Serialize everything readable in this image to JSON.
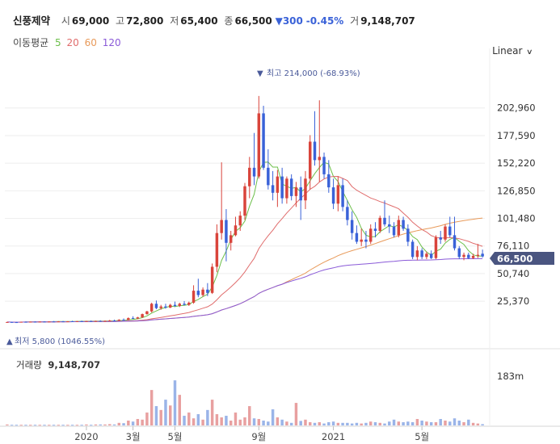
{
  "header": {
    "name": "신풍제약",
    "open_label": "시",
    "open": "69,000",
    "high_label": "고",
    "high": "72,800",
    "low_label": "저",
    "low": "65,400",
    "close_label": "종",
    "close": "66,500",
    "change_arrow": "▼",
    "change": "300",
    "change_pct": "-0.45%",
    "volume_label": "거",
    "volume": "9,148,707"
  },
  "ma_legend": {
    "title": "이동평균",
    "periods": [
      {
        "label": "5",
        "color": "#6cbf4a"
      },
      {
        "label": "20",
        "color": "#e06c6c"
      },
      {
        "label": "60",
        "color": "#e89a5a"
      },
      {
        "label": "120",
        "color": "#8a5ad8"
      }
    ]
  },
  "scale_button": "Linear",
  "volume_panel": {
    "title": "거래량",
    "value": "9,148,707",
    "axis_label": "183m"
  },
  "annotations": {
    "high": "최고 214,000 (-68.93%)",
    "high_arrow": "▼",
    "low": "최저 5,800 (1046.55%)",
    "low_arrow": "▲"
  },
  "colors": {
    "up": "#d9443b",
    "down": "#3a62d8",
    "up_vol": "#e8a0a0",
    "down_vol": "#9ab4e8",
    "badge": "#4a5580"
  },
  "chart_data": {
    "type": "candlestick",
    "title": "신풍제약",
    "current_price": "66,500",
    "y_ticks": [
      "25,370",
      "50,740",
      "76,110",
      "101,480",
      "126,850",
      "152,220",
      "177,590",
      "202,960"
    ],
    "y_tick_values": [
      25370,
      50740,
      76110,
      101480,
      126850,
      152220,
      177590,
      202960
    ],
    "ylim": [
      -3500,
      228000
    ],
    "x_ticks": [
      "2020",
      "3월",
      "5월",
      "9월",
      "2021",
      "5월"
    ],
    "x_tick_index": [
      17,
      27,
      36,
      54,
      70,
      89
    ],
    "volume_ylim": [
      0,
      183000000
    ],
    "volume_tick": "183m",
    "candles": [
      {
        "o": 6000,
        "h": 6400,
        "l": 5800,
        "c": 6200
      },
      {
        "o": 6200,
        "h": 6500,
        "l": 6000,
        "c": 6100
      },
      {
        "o": 6100,
        "h": 6300,
        "l": 5900,
        "c": 6000
      },
      {
        "o": 6000,
        "h": 6600,
        "l": 5900,
        "c": 6400
      },
      {
        "o": 6400,
        "h": 6800,
        "l": 6200,
        "c": 6300
      },
      {
        "o": 6300,
        "h": 6600,
        "l": 6100,
        "c": 6500
      },
      {
        "o": 6500,
        "h": 6900,
        "l": 6300,
        "c": 6400
      },
      {
        "o": 6400,
        "h": 6700,
        "l": 6200,
        "c": 6600
      },
      {
        "o": 6600,
        "h": 7000,
        "l": 6400,
        "c": 6500
      },
      {
        "o": 6500,
        "h": 6800,
        "l": 6300,
        "c": 6700
      },
      {
        "o": 6700,
        "h": 7100,
        "l": 6500,
        "c": 6600
      },
      {
        "o": 6600,
        "h": 7000,
        "l": 6400,
        "c": 6800
      },
      {
        "o": 6800,
        "h": 7200,
        "l": 6600,
        "c": 6700
      },
      {
        "o": 6700,
        "h": 7000,
        "l": 6500,
        "c": 6900
      },
      {
        "o": 6900,
        "h": 7400,
        "l": 6700,
        "c": 6800
      },
      {
        "o": 6800,
        "h": 7200,
        "l": 6600,
        "c": 7000
      },
      {
        "o": 7000,
        "h": 7500,
        "l": 6800,
        "c": 6900
      },
      {
        "o": 6900,
        "h": 7300,
        "l": 6700,
        "c": 7100
      },
      {
        "o": 7100,
        "h": 7600,
        "l": 6900,
        "c": 7000
      },
      {
        "o": 7000,
        "h": 7400,
        "l": 6800,
        "c": 7200
      },
      {
        "o": 7200,
        "h": 7800,
        "l": 7000,
        "c": 7100
      },
      {
        "o": 7100,
        "h": 7600,
        "l": 6900,
        "c": 7300
      },
      {
        "o": 7300,
        "h": 8200,
        "l": 7100,
        "c": 7600
      },
      {
        "o": 7600,
        "h": 8400,
        "l": 7300,
        "c": 7400
      },
      {
        "o": 7400,
        "h": 8800,
        "l": 7200,
        "c": 8300
      },
      {
        "o": 8300,
        "h": 9500,
        "l": 7900,
        "c": 8000
      },
      {
        "o": 8000,
        "h": 10500,
        "l": 7800,
        "c": 9800
      },
      {
        "o": 9800,
        "h": 11500,
        "l": 9200,
        "c": 9400
      },
      {
        "o": 9400,
        "h": 11000,
        "l": 9000,
        "c": 10500
      },
      {
        "o": 10500,
        "h": 14000,
        "l": 10000,
        "c": 13500
      },
      {
        "o": 13500,
        "h": 16500,
        "l": 13000,
        "c": 16000
      },
      {
        "o": 16000,
        "h": 24000,
        "l": 15000,
        "c": 23000
      },
      {
        "o": 23000,
        "h": 26000,
        "l": 18000,
        "c": 19000
      },
      {
        "o": 19000,
        "h": 22000,
        "l": 17500,
        "c": 20500
      },
      {
        "o": 20500,
        "h": 23000,
        "l": 18500,
        "c": 19500
      },
      {
        "o": 19500,
        "h": 23000,
        "l": 19000,
        "c": 22000
      },
      {
        "o": 22000,
        "h": 25000,
        "l": 20000,
        "c": 21000
      },
      {
        "o": 21000,
        "h": 24000,
        "l": 20000,
        "c": 23000
      },
      {
        "o": 23000,
        "h": 25500,
        "l": 21500,
        "c": 22000
      },
      {
        "o": 22000,
        "h": 25000,
        "l": 21000,
        "c": 24000
      },
      {
        "o": 24000,
        "h": 40000,
        "l": 23000,
        "c": 35000
      },
      {
        "o": 35000,
        "h": 46000,
        "l": 29000,
        "c": 31000
      },
      {
        "o": 31000,
        "h": 38000,
        "l": 29500,
        "c": 36000
      },
      {
        "o": 36000,
        "h": 42000,
        "l": 30000,
        "c": 33000
      },
      {
        "o": 33000,
        "h": 60000,
        "l": 32000,
        "c": 57000
      },
      {
        "o": 57000,
        "h": 96000,
        "l": 52000,
        "c": 88000
      },
      {
        "o": 88000,
        "h": 153000,
        "l": 82000,
        "c": 100000
      },
      {
        "o": 100000,
        "h": 110000,
        "l": 62000,
        "c": 79000
      },
      {
        "o": 79000,
        "h": 90000,
        "l": 72000,
        "c": 86000
      },
      {
        "o": 86000,
        "h": 103000,
        "l": 85000,
        "c": 95000
      },
      {
        "o": 95000,
        "h": 108000,
        "l": 90000,
        "c": 104000
      },
      {
        "o": 104000,
        "h": 134000,
        "l": 100000,
        "c": 131000
      },
      {
        "o": 131000,
        "h": 158000,
        "l": 120000,
        "c": 148000
      },
      {
        "o": 148000,
        "h": 180000,
        "l": 132000,
        "c": 140000
      },
      {
        "o": 140000,
        "h": 214000,
        "l": 138000,
        "c": 198000
      },
      {
        "o": 198000,
        "h": 205000,
        "l": 146000,
        "c": 148000
      },
      {
        "o": 148000,
        "h": 165000,
        "l": 128000,
        "c": 132000
      },
      {
        "o": 132000,
        "h": 145000,
        "l": 118000,
        "c": 125000
      },
      {
        "o": 125000,
        "h": 146000,
        "l": 112000,
        "c": 140000
      },
      {
        "o": 140000,
        "h": 148000,
        "l": 115000,
        "c": 120000
      },
      {
        "o": 120000,
        "h": 140000,
        "l": 115000,
        "c": 138000
      },
      {
        "o": 138000,
        "h": 142000,
        "l": 118000,
        "c": 122000
      },
      {
        "o": 122000,
        "h": 135000,
        "l": 112000,
        "c": 130000
      },
      {
        "o": 130000,
        "h": 140000,
        "l": 100000,
        "c": 118000
      },
      {
        "o": 118000,
        "h": 145000,
        "l": 110000,
        "c": 138000
      },
      {
        "o": 138000,
        "h": 178000,
        "l": 128000,
        "c": 172000
      },
      {
        "o": 172000,
        "h": 200000,
        "l": 150000,
        "c": 155000
      },
      {
        "o": 155000,
        "h": 210000,
        "l": 135000,
        "c": 158000
      },
      {
        "o": 158000,
        "h": 162000,
        "l": 138000,
        "c": 142000
      },
      {
        "o": 142000,
        "h": 155000,
        "l": 125000,
        "c": 130000
      },
      {
        "o": 130000,
        "h": 138000,
        "l": 110000,
        "c": 115000
      },
      {
        "o": 115000,
        "h": 140000,
        "l": 108000,
        "c": 132000
      },
      {
        "o": 132000,
        "h": 138000,
        "l": 108000,
        "c": 112000
      },
      {
        "o": 112000,
        "h": 118000,
        "l": 95000,
        "c": 100000
      },
      {
        "o": 100000,
        "h": 108000,
        "l": 82000,
        "c": 88000
      },
      {
        "o": 88000,
        "h": 95000,
        "l": 78000,
        "c": 80000
      },
      {
        "o": 80000,
        "h": 92000,
        "l": 76000,
        "c": 82000
      },
      {
        "o": 82000,
        "h": 90000,
        "l": 74000,
        "c": 80000
      },
      {
        "o": 80000,
        "h": 96000,
        "l": 78000,
        "c": 92000
      },
      {
        "o": 92000,
        "h": 98000,
        "l": 84000,
        "c": 90000
      },
      {
        "o": 90000,
        "h": 104000,
        "l": 88000,
        "c": 102000
      },
      {
        "o": 102000,
        "h": 118000,
        "l": 94000,
        "c": 96000
      },
      {
        "o": 96000,
        "h": 104000,
        "l": 88000,
        "c": 94000
      },
      {
        "o": 94000,
        "h": 98000,
        "l": 84000,
        "c": 86000
      },
      {
        "o": 86000,
        "h": 104000,
        "l": 84000,
        "c": 100000
      },
      {
        "o": 100000,
        "h": 103000,
        "l": 90000,
        "c": 92000
      },
      {
        "o": 92000,
        "h": 96000,
        "l": 76000,
        "c": 80000
      },
      {
        "o": 80000,
        "h": 82000,
        "l": 64000,
        "c": 66000
      },
      {
        "o": 66000,
        "h": 76000,
        "l": 63000,
        "c": 72000
      },
      {
        "o": 72000,
        "h": 74000,
        "l": 64000,
        "c": 66000
      },
      {
        "o": 66000,
        "h": 71000,
        "l": 64000,
        "c": 69000
      },
      {
        "o": 69000,
        "h": 72000,
        "l": 64000,
        "c": 65000
      },
      {
        "o": 65000,
        "h": 86000,
        "l": 64000,
        "c": 84000
      },
      {
        "o": 84000,
        "h": 90000,
        "l": 78000,
        "c": 82000
      },
      {
        "o": 82000,
        "h": 96000,
        "l": 80000,
        "c": 94000
      },
      {
        "o": 94000,
        "h": 103000,
        "l": 84000,
        "c": 86000
      },
      {
        "o": 86000,
        "h": 103000,
        "l": 72000,
        "c": 74000
      },
      {
        "o": 74000,
        "h": 76000,
        "l": 64000,
        "c": 66000
      },
      {
        "o": 66000,
        "h": 70000,
        "l": 63000,
        "c": 68000
      },
      {
        "o": 68000,
        "h": 70000,
        "l": 64000,
        "c": 65000
      },
      {
        "o": 65000,
        "h": 69000,
        "l": 64000,
        "c": 67000
      },
      {
        "o": 67000,
        "h": 78000,
        "l": 65000,
        "c": 68000
      },
      {
        "o": 69000,
        "h": 72800,
        "l": 65400,
        "c": 66500
      }
    ],
    "volumes_m": [
      3,
      2,
      2,
      2,
      2,
      2,
      2,
      2,
      2,
      2,
      2,
      2,
      2,
      2,
      2,
      2,
      2,
      3,
      2,
      3,
      3,
      3,
      4,
      3,
      8,
      7,
      15,
      12,
      20,
      18,
      40,
      110,
      60,
      48,
      80,
      62,
      140,
      95,
      30,
      40,
      22,
      35,
      18,
      48,
      80,
      35,
      25,
      30,
      15,
      40,
      18,
      25,
      60,
      22,
      20,
      15,
      12,
      50,
      25,
      18,
      12,
      8,
      70,
      14,
      18,
      10,
      8,
      10,
      6,
      10,
      12,
      8,
      8,
      8,
      6,
      8,
      6,
      8,
      12,
      10,
      8,
      6,
      12,
      18,
      12,
      10,
      12,
      10,
      20,
      15,
      12,
      10,
      10,
      20,
      15,
      12,
      22,
      15,
      10,
      18,
      8,
      6,
      4,
      8,
      10
    ],
    "ma_series": {
      "ma5": [
        null,
        null,
        null,
        null,
        6140,
        6260,
        6340,
        6440,
        6460,
        6540,
        6560,
        6640,
        6660,
        6740,
        6760,
        6840,
        6860,
        6940,
        6960,
        7040,
        7060,
        7140,
        7240,
        7280,
        7540,
        7660,
        8220,
        8500,
        9100,
        10240,
        12100,
        14520,
        16380,
        18420,
        19600,
        20200,
        20400,
        20900,
        21500,
        22200,
        24200,
        25200,
        27600,
        29200,
        38400,
        49000,
        62800,
        69000,
        80600,
        86400,
        90400,
        100200,
        116000,
        124000,
        132000,
        156000,
        160200,
        154600,
        148400,
        140000,
        131000,
        126800,
        126200,
        128000,
        127600,
        136000,
        143000,
        147200,
        142000,
        139000,
        130800,
        128600,
        121600,
        109400,
        95600,
        88600,
        85000,
        82600,
        86000,
        85800,
        90000,
        93200,
        95600,
        94400,
        95200,
        92400,
        88400,
        82400,
        76800,
        70400,
        68400,
        66200,
        73200,
        77600,
        81000,
        83200,
        86400,
        82000,
        75600,
        69800,
        67800,
        68200,
        67000
      ]
    },
    "ma_colors_order": [
      "ma5",
      "ma20",
      "ma60",
      "ma120"
    ]
  }
}
